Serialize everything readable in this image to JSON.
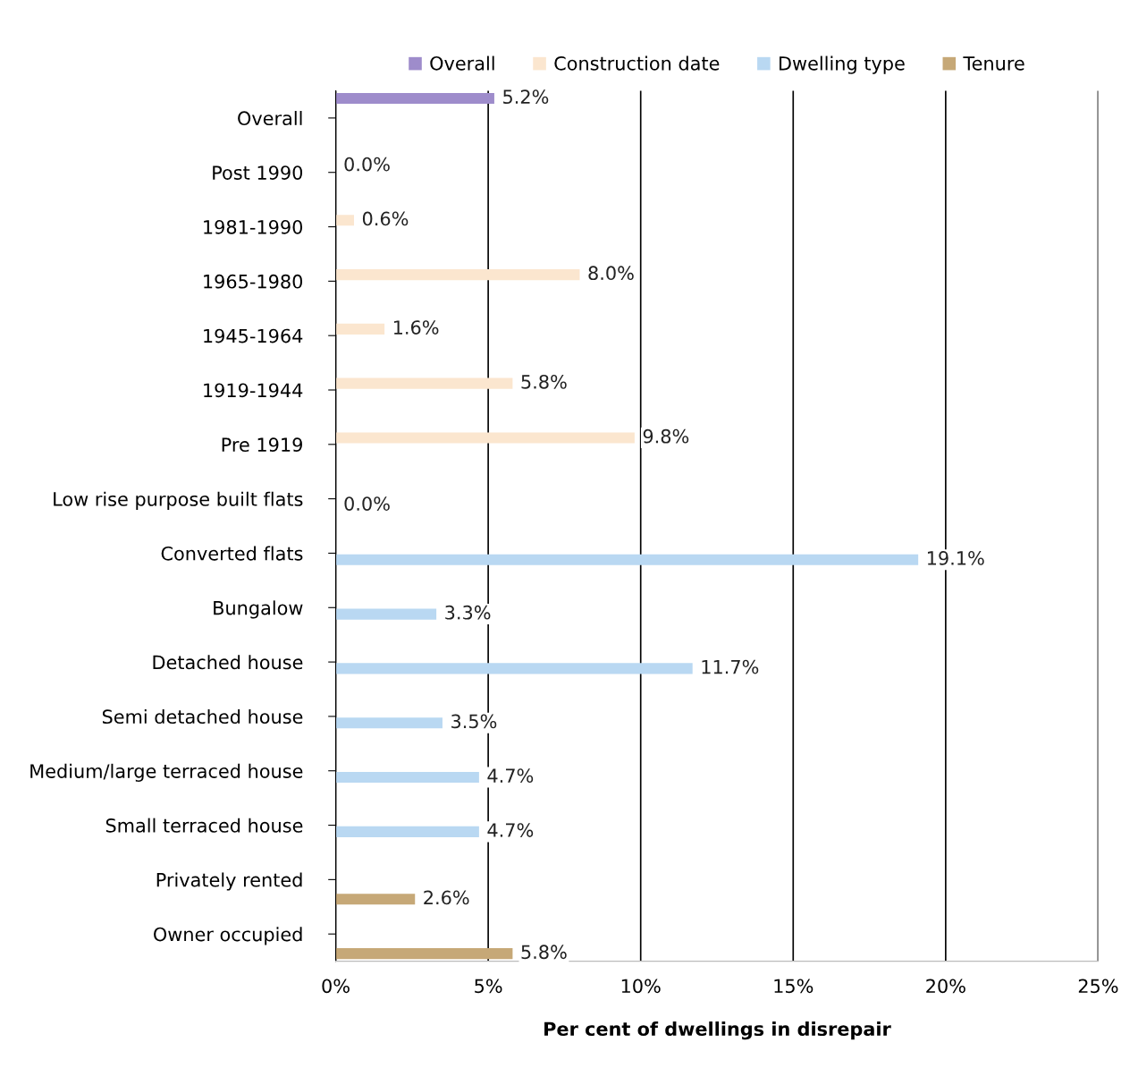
{
  "chart_data": {
    "type": "bar",
    "orientation": "horizontal",
    "xlabel": "Per cent of dwellings in disrepair",
    "categories": [
      "Overall",
      "Post 1990",
      "1981-1990",
      "1965-1980",
      "1945-1964",
      "1919-1944",
      "Pre 1919",
      "Low rise purpose built flats",
      "Converted flats",
      "Bungalow",
      "Detached house",
      "Semi detached house",
      "Medium/large terraced house",
      "Small terraced house",
      "Privately rented",
      "Owner occupied"
    ],
    "series": [
      {
        "name": "Overall",
        "color": "#9e8ccb",
        "values": [
          5.2,
          null,
          null,
          null,
          null,
          null,
          null,
          null,
          null,
          null,
          null,
          null,
          null,
          null,
          null,
          null
        ],
        "value_labels": [
          "5.2%",
          null,
          null,
          null,
          null,
          null,
          null,
          null,
          null,
          null,
          null,
          null,
          null,
          null,
          null,
          null
        ]
      },
      {
        "name": "Construction date",
        "color": "#fbe6cf",
        "values": [
          null,
          0.0,
          0.6,
          8.0,
          1.6,
          5.8,
          9.8,
          null,
          null,
          null,
          null,
          null,
          null,
          null,
          null,
          null
        ],
        "value_labels": [
          null,
          "0.0%",
          "0.6%",
          "8.0%",
          "1.6%",
          "5.8%",
          "9.8%",
          null,
          null,
          null,
          null,
          null,
          null,
          null,
          null,
          null
        ]
      },
      {
        "name": "Dwelling type",
        "color": "#b9d8f2",
        "values": [
          null,
          null,
          null,
          null,
          null,
          null,
          null,
          0.0,
          19.1,
          3.3,
          11.7,
          3.5,
          4.7,
          4.7,
          null,
          null
        ],
        "value_labels": [
          null,
          null,
          null,
          null,
          null,
          null,
          null,
          "0.0%",
          "19.1%",
          "3.3%",
          "11.7%",
          "3.5%",
          "4.7%",
          "4.7%",
          null,
          null
        ]
      },
      {
        "name": "Tenure",
        "color": "#c6a877",
        "values": [
          null,
          null,
          null,
          null,
          null,
          null,
          null,
          null,
          null,
          null,
          null,
          null,
          null,
          null,
          2.6,
          5.8
        ],
        "value_labels": [
          null,
          null,
          null,
          null,
          null,
          null,
          null,
          null,
          null,
          null,
          null,
          null,
          null,
          null,
          "2.6%",
          "5.8%"
        ]
      }
    ],
    "xlim": [
      0,
      25
    ],
    "xticks": [
      {
        "value": 0,
        "label": "0%"
      },
      {
        "value": 5,
        "label": "5%"
      },
      {
        "value": 10,
        "label": "10%"
      },
      {
        "value": 15,
        "label": "15%"
      },
      {
        "value": 20,
        "label": "20%"
      },
      {
        "value": 25,
        "label": "25%"
      }
    ],
    "grid": "x",
    "legend": "top"
  }
}
